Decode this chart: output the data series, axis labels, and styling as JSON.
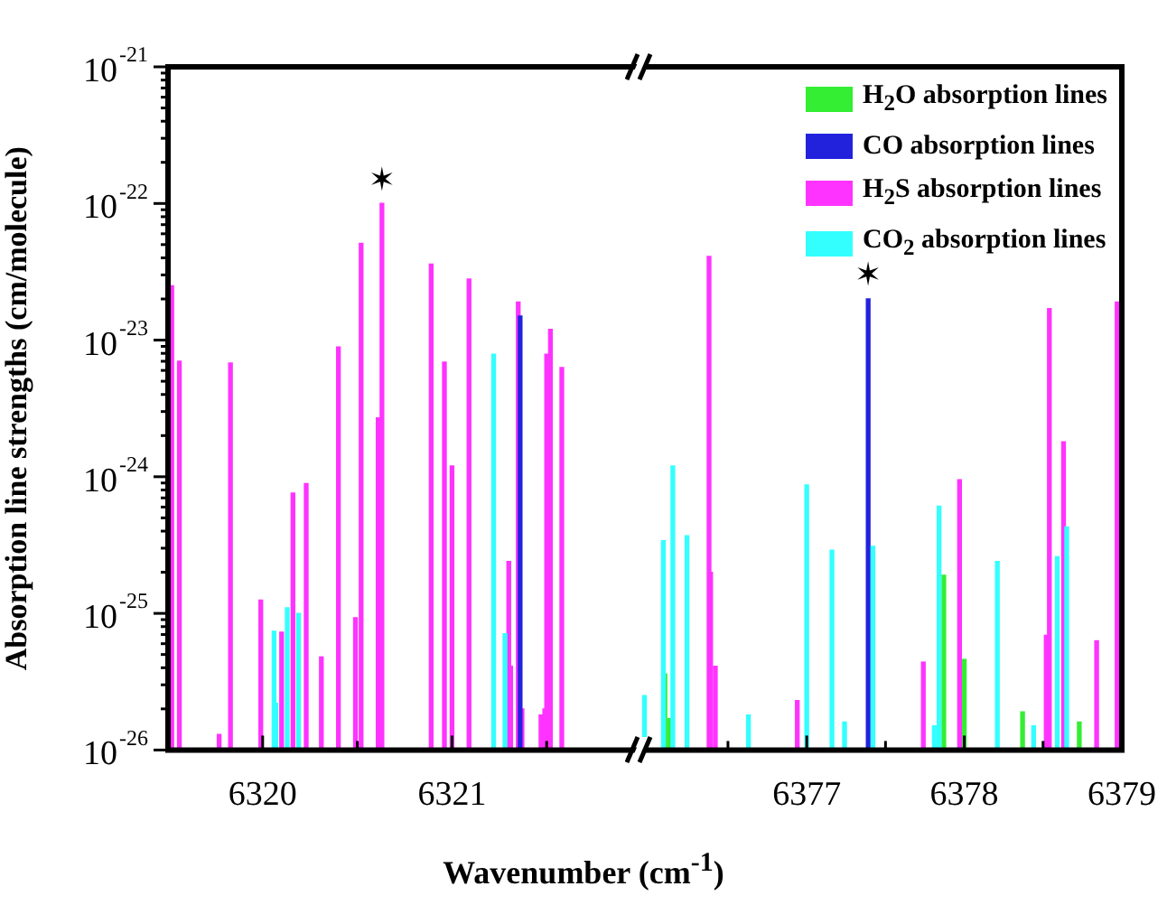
{
  "chart_data": [
    {
      "type": "bar",
      "xlabel": "Wavenumber (cm$^{-1}$)",
      "ylabel": "Absorption line strengths (cm/molecule)",
      "log": true,
      "xlim": [
        6319.5,
        6322.0
      ],
      "xticks": [
        6320,
        {
          "value": 6320.5,
          "label": null
        },
        6321,
        {
          "value": 6321.5,
          "label": null
        }
      ],
      "ylim": [
        1e-26,
        1e-21
      ],
      "yticks": [
        {
          "value": 1e-26,
          "label": "10$^{-26}$"
        },
        {
          "value": 2e-26,
          "label": null
        },
        {
          "value": 3e-26,
          "label": null
        },
        {
          "value": 4e-26,
          "label": null
        },
        {
          "value": 5e-26,
          "label": null
        },
        {
          "value": 6e-26,
          "label": null
        },
        {
          "value": 7e-26,
          "label": null
        },
        {
          "value": 8e-26,
          "label": null
        },
        {
          "value": 9e-26,
          "label": null
        },
        {
          "value": 1e-25,
          "label": "10$^{-25}$"
        },
        {
          "value": 2e-25,
          "label": null
        },
        {
          "value": 3e-25,
          "label": null
        },
        {
          "value": 4e-25,
          "label": null
        },
        {
          "value": 5e-25,
          "label": null
        },
        {
          "value": 6e-25,
          "label": null
        },
        {
          "value": 7e-25,
          "label": null
        },
        {
          "value": 8e-25,
          "label": null
        },
        {
          "value": 9e-25,
          "label": null
        },
        {
          "value": 1e-24,
          "label": "10$^{-24}$"
        },
        {
          "value": 2e-24,
          "label": null
        },
        {
          "value": 3e-24,
          "label": null
        },
        {
          "value": 4e-24,
          "label": null
        },
        {
          "value": 5e-24,
          "label": null
        },
        {
          "value": 6e-24,
          "label": null
        },
        {
          "value": 7e-24,
          "label": null
        },
        {
          "value": 8e-24,
          "label": null
        },
        {
          "value": 9e-24,
          "label": null
        },
        {
          "value": 1e-23,
          "label": "10$^{-23}$"
        },
        {
          "value": 2e-23,
          "label": null
        },
        {
          "value": 3e-23,
          "label": null
        },
        {
          "value": 4e-23,
          "label": null
        },
        {
          "value": 5e-23,
          "label": null
        },
        {
          "value": 6e-23,
          "label": null
        },
        {
          "value": 7e-23,
          "label": null
        },
        {
          "value": 8e-23,
          "label": null
        },
        {
          "value": 9e-23,
          "label": null
        },
        {
          "value": 1e-22,
          "label": "10$^{-22}$"
        },
        {
          "value": 2e-22,
          "label": null
        },
        {
          "value": 3e-22,
          "label": null
        },
        {
          "value": 4e-22,
          "label": null
        },
        {
          "value": 5e-22,
          "label": null
        },
        {
          "value": 6e-22,
          "label": null
        },
        {
          "value": 7e-22,
          "label": null
        },
        {
          "value": 8e-22,
          "label": null
        },
        {
          "value": 9e-22,
          "label": null
        },
        {
          "value": 1e-21,
          "label": "10$^{-21}$"
        }
      ],
      "series": [
        {
          "color": "#ff33ff",
          "x": [
            6319.52,
            6319.56,
            6319.77,
            6319.83,
            6319.99,
            6320.1,
            6320.16,
            6320.23,
            6320.31,
            6320.4,
            6320.49,
            6320.52,
            6320.61,
            6320.63,
            6320.89,
            6320.96,
            6321.0,
            6321.09,
            6321.3,
            6321.31,
            6321.35,
            6321.37,
            6321.47,
            6321.49,
            6321.5,
            6321.52,
            6321.58
          ],
          "values": [
            2.5e-23,
            7e-24,
            1.3e-26,
            6.8e-24,
            1.25e-25,
            7.3e-26,
            7.6e-25,
            8.9e-25,
            4.8e-26,
            8.9e-24,
            9.3e-26,
            5.1e-23,
            2.7e-24,
            1e-22,
            3.6e-23,
            6.9e-24,
            1.2e-24,
            2.8e-23,
            2.4e-25,
            4.1e-26,
            1.9e-23,
            2e-26,
            1.8e-26,
            2e-26,
            7.9e-24,
            1.2e-23,
            6.3e-24
          ]
        },
        {
          "color": "#33ffff",
          "x": [
            6320.06,
            6320.07,
            6320.13,
            6320.19,
            6321.22,
            6321.28
          ],
          "values": [
            7.4e-26,
            2.2e-26,
            1.1e-25,
            1e-25,
            7.9e-24,
            7.1e-26
          ]
        },
        {
          "color": "#2222dd",
          "x": [
            6321.36
          ],
          "values": [
            1.5e-23
          ]
        }
      ],
      "annotations": [
        {
          "text": "✶",
          "x": 6320.63,
          "y": 1e-22
        }
      ]
    },
    {
      "type": "bar",
      "log": true,
      "tick_labels": "x",
      "legend": "top right",
      "xlim": [
        6375.95,
        6379.0
      ],
      "xticks": [
        {
          "value": 6376.5,
          "label": null
        },
        6377,
        {
          "value": 6377.5,
          "label": null
        },
        6378,
        {
          "value": 6378.5,
          "label": null
        },
        6379
      ],
      "ylim": [
        1e-26,
        1e-21
      ],
      "series": [
        {
          "name": "H$_{2}$O absorption lines",
          "color": "#33ee33",
          "x": [
            6376.1,
            6376.13,
            6377.87,
            6378.0,
            6378.37,
            6378.73
          ],
          "values": [
            3.6e-26,
            1.7e-26,
            1.9e-25,
            4.6e-26,
            1.9e-26,
            1.6e-26
          ]
        },
        {
          "name": "CO absorption lines",
          "color": "#2222dd",
          "x": [
            6377.39
          ],
          "values": [
            2e-23
          ]
        },
        {
          "name": "H$_{2}$S absorption lines",
          "color": "#ff33ff",
          "x": [
            6376.38,
            6376.39,
            6376.42,
            6376.94,
            6377.74,
            6377.97,
            6378.52,
            6378.54,
            6378.63,
            6378.84,
            6378.97
          ],
          "values": [
            4.1e-23,
            2e-25,
            4.1e-26,
            2.3e-26,
            4.4e-26,
            9.5e-25,
            6.9e-26,
            1.7e-23,
            1.8e-24,
            6.3e-26,
            1.9e-23
          ]
        },
        {
          "name": "CO$_{2}$ absorption lines",
          "color": "#33ffff",
          "x": [
            6375.97,
            6376.09,
            6376.15,
            6376.24,
            6376.63,
            6377.0,
            6377.16,
            6377.24,
            6377.42,
            6377.81,
            6377.84,
            6378.21,
            6378.44,
            6378.59,
            6378.65
          ],
          "values": [
            2.5e-26,
            3.4e-25,
            1.2e-24,
            3.7e-25,
            1.8e-26,
            8.7e-25,
            2.9e-25,
            1.6e-26,
            3.1e-25,
            1.5e-26,
            6.1e-25,
            2.4e-25,
            1.5e-26,
            2.6e-25,
            4.3e-25
          ]
        }
      ],
      "annotations": [
        {
          "text": "✶",
          "x": 6377.39,
          "y": 2e-23
        }
      ]
    }
  ]
}
